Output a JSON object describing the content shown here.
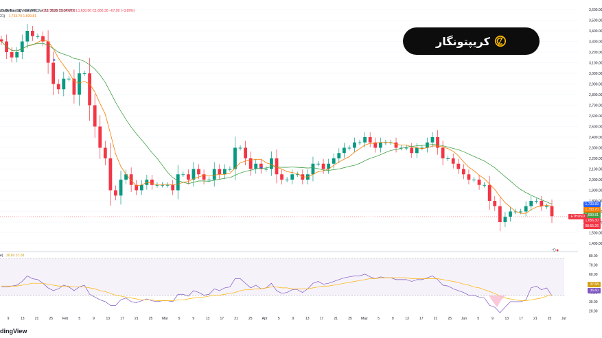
{
  "header": {
    "line1_prefix": "d with TradingView.com, Jun 23, 2026 15:04 UTC",
    "line2_symbol": "JS Dollar · 1D · CRYPTO",
    "line2_values": "O1,736.19  H1,734.69  L1,630.00  C1,656.30  −67.09 (−3.89%)",
    "line3_prefix": "21)",
    "line3_values": "1,733.70   1,699.81",
    "rsi_label": "e)",
    "rsi_values": "36.60  37.68"
  },
  "logo": {
    "text": "کریپتونگار",
    "icon": "coin-c-icon"
  },
  "footer": {
    "brand": "dingView"
  },
  "price_axis": {
    "ticks": [
      "3,600.00",
      "3,500.00",
      "3,400.00",
      "3,300.00",
      "3,200.00",
      "3,100.00",
      "3,000.00",
      "2,900.00",
      "2,800.00",
      "2,700.00",
      "2,600.00",
      "2,500.00",
      "2,400.00",
      "2,300.00",
      "2,200.00",
      "2,100.00",
      "2,000.00",
      "1,900.00",
      "1,800.00",
      "1,700.00",
      "1,600.00",
      "1,500.00",
      "1,400.00"
    ],
    "badges": [
      {
        "text": "1,733.89",
        "color": "#2962ff"
      },
      {
        "text": "1,733.70",
        "color": "#f57c00"
      },
      {
        "text": "1,699.81",
        "color": "#43a047"
      },
      {
        "text": "1,656.30",
        "color": "#f23645"
      },
      {
        "text": "08:55:26",
        "color": "#f23645"
      }
    ],
    "current_label": "ETHUSD"
  },
  "rsi_axis": {
    "ticks": [
      "80.00",
      "70.00",
      "60.00",
      "50.00",
      "40.00",
      "30.00",
      "20.00"
    ],
    "badges": [
      {
        "text": "37.68",
        "color": "#d4a017"
      },
      {
        "text": "36.60",
        "color": "#7e57c2"
      }
    ]
  },
  "time_axis": {
    "labels": [
      "9",
      "13",
      "21",
      "25",
      "Feb",
      "5",
      "9",
      "13",
      "17",
      "21",
      "25",
      "Mar",
      "5",
      "9",
      "13",
      "17",
      "21",
      "25",
      "Apr",
      "5",
      "9",
      "13",
      "17",
      "21",
      "25",
      "May",
      "5",
      "9",
      "13",
      "17",
      "21",
      "25",
      "Jun",
      "5",
      "9",
      "13",
      "17",
      "21",
      "25",
      "Jul"
    ]
  },
  "chart_data": [
    {
      "type": "candlestick",
      "title": "",
      "ylim": [
        1400,
        3600
      ],
      "series": [
        {
          "name": "",
          "ohlc_close": [
            3300,
            3200,
            3150,
            3200,
            3300,
            3400,
            3350,
            3350,
            3300,
            3100,
            2900,
            2850,
            2950,
            2950,
            2800,
            3000,
            3000,
            2700,
            2500,
            2300,
            2200,
            1900,
            1850,
            2000,
            2050,
            1950,
            1900,
            1950,
            2000,
            1950,
            1950,
            1950,
            1950,
            1900,
            2050,
            2050,
            2000,
            2100,
            2050,
            2000,
            2000,
            2100,
            2050,
            2100,
            2100,
            2300,
            2300,
            2200,
            2100,
            2150,
            2100,
            2100,
            2200,
            2050,
            2000,
            2000,
            2050,
            2050,
            2000,
            2050,
            2150,
            2150,
            2100,
            2150,
            2200,
            2250,
            2300,
            2300,
            2350,
            2350,
            2400,
            2350,
            2300,
            2350,
            2350,
            2350,
            2300,
            2300,
            2300,
            2250,
            2300,
            2300,
            2350,
            2400,
            2300,
            2200,
            2200,
            2150,
            2100,
            2050,
            2000,
            2000,
            1950,
            1950,
            1800,
            1750,
            1600,
            1650,
            1700,
            1700,
            1700,
            1750,
            1800,
            1800,
            1750,
            1750,
            1656
          ]
        }
      ]
    },
    {
      "type": "line",
      "title": "",
      "ylim": [
        20,
        80
      ],
      "series": [
        {
          "name": "",
          "values": [
            46,
            46,
            47,
            48,
            52,
            58,
            55,
            54,
            50,
            45,
            42,
            44,
            48,
            46,
            42,
            46,
            48,
            38,
            35,
            32,
            30,
            26,
            26,
            32,
            34,
            30,
            29,
            31,
            33,
            31,
            30,
            31,
            31,
            30,
            38,
            38,
            36,
            42,
            40,
            37,
            38,
            44,
            42,
            45,
            46,
            55,
            55,
            50,
            45,
            48,
            44,
            45,
            50,
            42,
            39,
            40,
            43,
            43,
            40,
            44,
            50,
            52,
            49,
            50,
            52,
            54,
            56,
            57,
            58,
            58,
            60,
            57,
            55,
            57,
            56,
            56,
            54,
            54,
            54,
            52,
            54,
            54,
            56,
            58,
            54,
            48,
            47,
            44,
            42,
            40,
            37,
            37,
            35,
            34,
            26,
            24,
            18,
            24,
            30,
            30,
            30,
            32,
            45,
            47,
            43,
            45,
            36.6
          ]
        },
        {
          "name": "",
          "values": [
            47,
            47,
            47,
            47,
            48,
            49,
            50,
            50,
            50,
            49,
            48,
            47,
            47,
            47,
            46,
            46,
            46,
            45,
            44,
            42,
            41,
            39,
            37,
            36,
            35,
            34,
            33,
            32,
            32,
            32,
            31,
            31,
            31,
            31,
            32,
            32,
            33,
            34,
            35,
            35,
            36,
            37,
            37,
            38,
            39,
            40,
            42,
            43,
            43,
            44,
            44,
            45,
            46,
            46,
            45,
            45,
            44,
            44,
            44,
            44,
            45,
            46,
            47,
            47,
            48,
            49,
            50,
            51,
            52,
            53,
            54,
            55,
            55,
            56,
            56,
            56,
            56,
            56,
            56,
            55,
            55,
            55,
            55,
            55,
            55,
            54,
            53,
            52,
            51,
            49,
            48,
            46,
            45,
            43,
            41,
            39,
            36,
            34,
            33,
            32,
            31,
            31,
            32,
            33,
            34,
            36,
            37.68
          ]
        }
      ]
    }
  ]
}
